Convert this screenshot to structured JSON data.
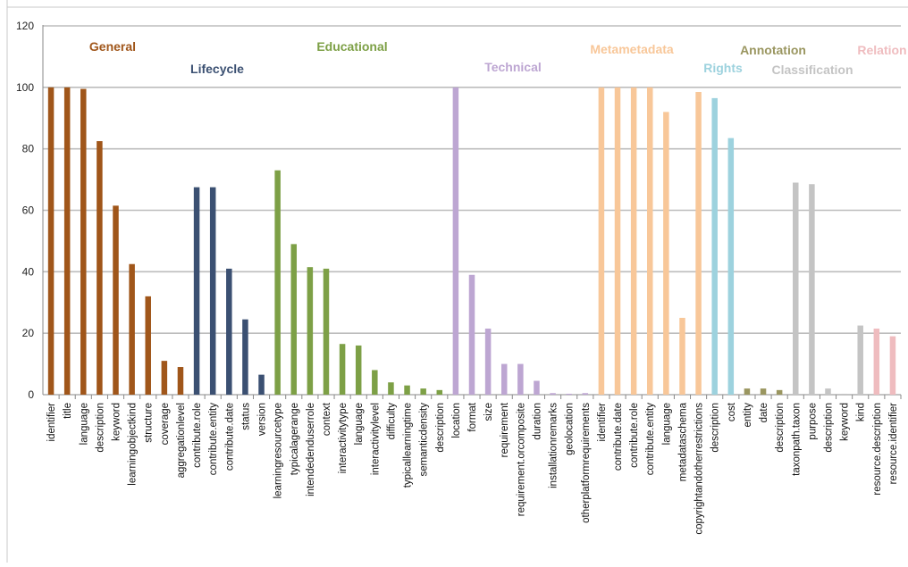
{
  "chart_data": {
    "type": "bar",
    "ylim": [
      0,
      120
    ],
    "yticks": [
      "0",
      "20",
      "40",
      "60",
      "80",
      "100",
      "120"
    ],
    "grid": true,
    "groups": [
      {
        "name": "General",
        "color": "#a0561a",
        "categories": [
          "identifier",
          "title",
          "language",
          "description",
          "keyword",
          "learningobjectkind",
          "structure",
          "coverage",
          "aggregationlevel"
        ],
        "values": [
          100,
          100,
          99.5,
          82.5,
          61.5,
          42.5,
          32,
          11,
          9
        ]
      },
      {
        "name": "Lifecycle",
        "color": "#3b5072",
        "categories": [
          "contribute.role",
          "contribute.entity",
          "contribute.date",
          "status",
          "version"
        ],
        "values": [
          67.5,
          67.5,
          41,
          24.5,
          6.5
        ]
      },
      {
        "name": "Educational",
        "color": "#7da046",
        "categories": [
          "learningresourcetype",
          "typicalagerange",
          "intendedenduserrole",
          "context",
          "interactivitytype",
          "language",
          "interactivitylevel",
          "difficulty",
          "typicallearningtime",
          "semanticdensity",
          "description"
        ],
        "values": [
          73,
          49,
          41.5,
          41,
          16.5,
          16,
          8,
          4,
          3,
          2,
          1.5
        ]
      },
      {
        "name": "Technical",
        "color": "#bda6d2",
        "categories": [
          "location",
          "format",
          "size",
          "requirement",
          "requirement.orcomposite",
          "duration",
          "installationremarks",
          "geolocation",
          "otherplatformrequirements"
        ],
        "values": [
          100,
          39,
          21.5,
          10,
          10,
          4.5,
          0.5,
          0.3,
          0.5
        ]
      },
      {
        "name": "Metametadata",
        "color": "#f8c799",
        "categories": [
          "identifier",
          "contribute.date",
          "contribute.role",
          "contribute.entity",
          "language",
          "metadataschema",
          "copyrightandotherrestrictions"
        ],
        "values": [
          100,
          100,
          100,
          100,
          92,
          25,
          98.5
        ]
      },
      {
        "name": "Rights",
        "color": "#9dd2de",
        "categories": [
          "description",
          "cost"
        ],
        "values": [
          96.5,
          83.5
        ]
      },
      {
        "name": "Annotation",
        "color": "#9a9660",
        "categories": [
          "entity",
          "date",
          "description"
        ],
        "values": [
          2,
          2,
          1.5
        ]
      },
      {
        "name": "Classification",
        "color": "#c4c4c4",
        "categories": [
          "taxonpath.taxon",
          "purpose",
          "description",
          "keyword",
          "kind"
        ],
        "values": [
          69,
          68.5,
          2,
          0.3,
          22.5
        ]
      },
      {
        "name": "Relation",
        "color": "#efbcbf",
        "categories": [
          "resource.description",
          "resource.identifier"
        ],
        "values": [
          21.5,
          19
        ]
      }
    ]
  }
}
